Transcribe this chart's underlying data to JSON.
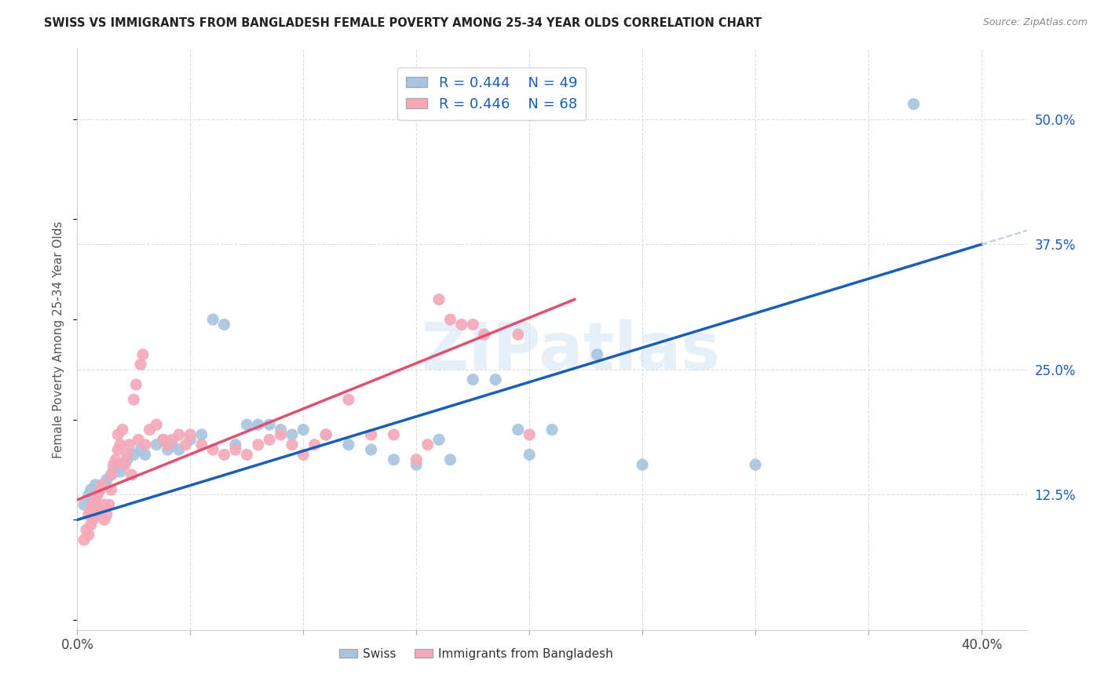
{
  "title": "SWISS VS IMMIGRANTS FROM BANGLADESH FEMALE POVERTY AMONG 25-34 YEAR OLDS CORRELATION CHART",
  "source": "Source: ZipAtlas.com",
  "ylabel": "Female Poverty Among 25-34 Year Olds",
  "xlim": [
    0.0,
    0.42
  ],
  "ylim": [
    -0.01,
    0.57
  ],
  "x_ticks": [
    0.0,
    0.05,
    0.1,
    0.15,
    0.2,
    0.25,
    0.3,
    0.35,
    0.4
  ],
  "x_tick_labels": [
    "0.0%",
    "",
    "",
    "",
    "",
    "",
    "",
    "",
    "40.0%"
  ],
  "y_ticks_right": [
    0.125,
    0.25,
    0.375,
    0.5
  ],
  "y_tick_labels_right": [
    "12.5%",
    "25.0%",
    "37.5%",
    "50.0%"
  ],
  "swiss_color": "#a8c4e0",
  "bangladesh_color": "#f4a8b8",
  "swiss_line_color": "#1a5eb8",
  "bangladesh_line_color": "#e05070",
  "swiss_dashed_color": "#b8cce4",
  "legend_R_swiss": "0.444",
  "legend_N_swiss": "49",
  "legend_R_bangladesh": "0.446",
  "legend_N_bangladesh": "68",
  "watermark": "ZIPatlas",
  "swiss_points": [
    [
      0.003,
      0.115
    ],
    [
      0.005,
      0.125
    ],
    [
      0.006,
      0.13
    ],
    [
      0.007,
      0.12
    ],
    [
      0.008,
      0.135
    ],
    [
      0.009,
      0.128
    ],
    [
      0.01,
      0.13
    ],
    [
      0.012,
      0.135
    ],
    [
      0.013,
      0.14
    ],
    [
      0.015,
      0.145
    ],
    [
      0.016,
      0.15
    ],
    [
      0.018,
      0.155
    ],
    [
      0.019,
      0.148
    ],
    [
      0.02,
      0.155
    ],
    [
      0.022,
      0.16
    ],
    [
      0.025,
      0.165
    ],
    [
      0.028,
      0.17
    ],
    [
      0.03,
      0.165
    ],
    [
      0.035,
      0.175
    ],
    [
      0.038,
      0.18
    ],
    [
      0.04,
      0.17
    ],
    [
      0.042,
      0.175
    ],
    [
      0.045,
      0.17
    ],
    [
      0.05,
      0.18
    ],
    [
      0.055,
      0.185
    ],
    [
      0.06,
      0.3
    ],
    [
      0.065,
      0.295
    ],
    [
      0.07,
      0.175
    ],
    [
      0.075,
      0.195
    ],
    [
      0.08,
      0.195
    ],
    [
      0.085,
      0.195
    ],
    [
      0.09,
      0.19
    ],
    [
      0.095,
      0.185
    ],
    [
      0.1,
      0.19
    ],
    [
      0.11,
      0.185
    ],
    [
      0.12,
      0.175
    ],
    [
      0.13,
      0.17
    ],
    [
      0.14,
      0.16
    ],
    [
      0.15,
      0.155
    ],
    [
      0.16,
      0.18
    ],
    [
      0.165,
      0.16
    ],
    [
      0.175,
      0.24
    ],
    [
      0.185,
      0.24
    ],
    [
      0.195,
      0.19
    ],
    [
      0.2,
      0.165
    ],
    [
      0.21,
      0.19
    ],
    [
      0.23,
      0.265
    ],
    [
      0.25,
      0.155
    ],
    [
      0.3,
      0.155
    ],
    [
      0.37,
      0.515
    ]
  ],
  "bangladesh_points": [
    [
      0.003,
      0.08
    ],
    [
      0.004,
      0.09
    ],
    [
      0.005,
      0.085
    ],
    [
      0.005,
      0.105
    ],
    [
      0.006,
      0.095
    ],
    [
      0.006,
      0.11
    ],
    [
      0.007,
      0.1
    ],
    [
      0.007,
      0.115
    ],
    [
      0.008,
      0.105
    ],
    [
      0.008,
      0.12
    ],
    [
      0.009,
      0.11
    ],
    [
      0.009,
      0.125
    ],
    [
      0.01,
      0.13
    ],
    [
      0.011,
      0.135
    ],
    [
      0.012,
      0.1
    ],
    [
      0.012,
      0.115
    ],
    [
      0.013,
      0.105
    ],
    [
      0.014,
      0.115
    ],
    [
      0.015,
      0.13
    ],
    [
      0.015,
      0.145
    ],
    [
      0.016,
      0.155
    ],
    [
      0.017,
      0.16
    ],
    [
      0.018,
      0.17
    ],
    [
      0.018,
      0.185
    ],
    [
      0.019,
      0.175
    ],
    [
      0.02,
      0.19
    ],
    [
      0.021,
      0.155
    ],
    [
      0.022,
      0.165
    ],
    [
      0.023,
      0.175
    ],
    [
      0.024,
      0.145
    ],
    [
      0.025,
      0.22
    ],
    [
      0.026,
      0.235
    ],
    [
      0.027,
      0.18
    ],
    [
      0.028,
      0.255
    ],
    [
      0.029,
      0.265
    ],
    [
      0.03,
      0.175
    ],
    [
      0.032,
      0.19
    ],
    [
      0.035,
      0.195
    ],
    [
      0.038,
      0.18
    ],
    [
      0.04,
      0.175
    ],
    [
      0.042,
      0.18
    ],
    [
      0.045,
      0.185
    ],
    [
      0.048,
      0.175
    ],
    [
      0.05,
      0.185
    ],
    [
      0.055,
      0.175
    ],
    [
      0.06,
      0.17
    ],
    [
      0.065,
      0.165
    ],
    [
      0.07,
      0.17
    ],
    [
      0.075,
      0.165
    ],
    [
      0.08,
      0.175
    ],
    [
      0.085,
      0.18
    ],
    [
      0.09,
      0.185
    ],
    [
      0.095,
      0.175
    ],
    [
      0.1,
      0.165
    ],
    [
      0.105,
      0.175
    ],
    [
      0.11,
      0.185
    ],
    [
      0.12,
      0.22
    ],
    [
      0.13,
      0.185
    ],
    [
      0.14,
      0.185
    ],
    [
      0.15,
      0.16
    ],
    [
      0.155,
      0.175
    ],
    [
      0.16,
      0.32
    ],
    [
      0.165,
      0.3
    ],
    [
      0.17,
      0.295
    ],
    [
      0.175,
      0.295
    ],
    [
      0.18,
      0.285
    ],
    [
      0.195,
      0.285
    ],
    [
      0.2,
      0.185
    ]
  ]
}
